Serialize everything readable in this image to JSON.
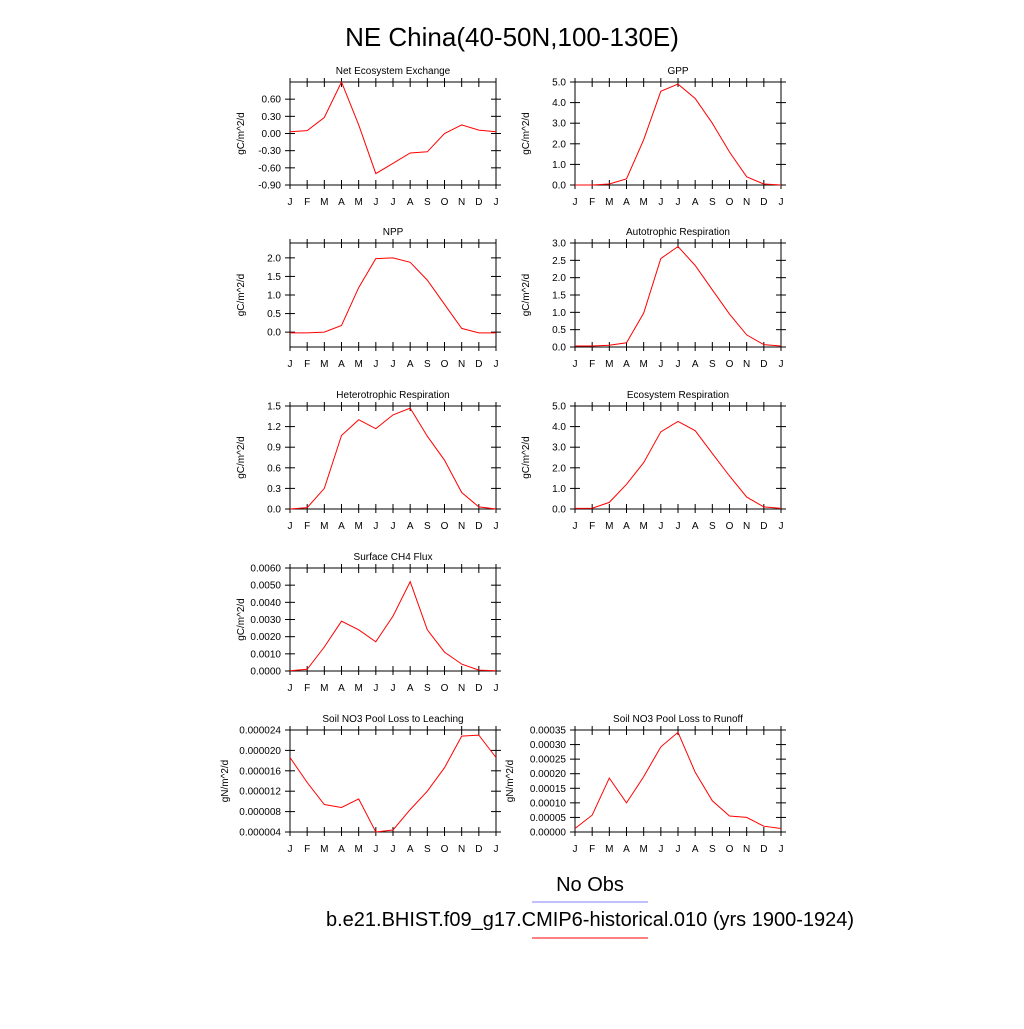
{
  "page": {
    "title": "NE China(40-50N,100-130E)",
    "legend": [
      {
        "label": "No Obs",
        "color": "#8080ff"
      },
      {
        "label": "b.e21.BHIST.f09_g17.CMIP6-historical.010 (yrs 1900-1924)",
        "color": "#ff0000"
      }
    ]
  },
  "chart_data": [
    {
      "type": "line",
      "title": "Net Ecosystem Exchange",
      "ylabel": "gC/m^2/d",
      "categories": [
        "J",
        "F",
        "M",
        "A",
        "M",
        "J",
        "J",
        "A",
        "S",
        "O",
        "N",
        "D",
        "J"
      ],
      "ylim": [
        -0.9,
        0.9
      ],
      "yticks": [
        "-0.90",
        "-0.60",
        "-0.30",
        "0.00",
        "0.30",
        "0.60"
      ],
      "ytick_values": [
        -0.9,
        -0.6,
        -0.3,
        0.0,
        0.3,
        0.6
      ],
      "series": [
        {
          "color": "#ff0000",
          "values": [
            0.03,
            0.05,
            0.28,
            0.9,
            0.15,
            -0.7,
            -0.52,
            -0.34,
            -0.32,
            0.0,
            0.15,
            0.06,
            0.03
          ]
        }
      ]
    },
    {
      "type": "line",
      "title": "GPP",
      "ylabel": "gC/m^2/d",
      "categories": [
        "J",
        "F",
        "M",
        "A",
        "M",
        "J",
        "J",
        "A",
        "S",
        "O",
        "N",
        "D",
        "J"
      ],
      "ylim": [
        0,
        5
      ],
      "yticks": [
        "0.0",
        "1.0",
        "2.0",
        "3.0",
        "4.0",
        "5.0"
      ],
      "ytick_values": [
        0,
        1,
        2,
        3,
        4,
        5
      ],
      "series": [
        {
          "color": "#ff0000",
          "values": [
            0.0,
            0.0,
            0.05,
            0.3,
            2.2,
            4.55,
            4.9,
            4.2,
            3.0,
            1.6,
            0.4,
            0.05,
            0.0
          ]
        }
      ]
    },
    {
      "type": "line",
      "title": "NPP",
      "ylabel": "gC/m^2/d",
      "categories": [
        "J",
        "F",
        "M",
        "A",
        "M",
        "J",
        "J",
        "A",
        "S",
        "O",
        "N",
        "D",
        "J"
      ],
      "ylim": [
        -0.4,
        2.4
      ],
      "yticks": [
        "0.0",
        "0.5",
        "1.0",
        "1.5",
        "2.0"
      ],
      "ytick_values": [
        0,
        0.5,
        1.0,
        1.5,
        2.0
      ],
      "series": [
        {
          "color": "#ff0000",
          "values": [
            -0.02,
            -0.02,
            0.0,
            0.18,
            1.2,
            1.98,
            2.0,
            1.88,
            1.4,
            0.75,
            0.1,
            -0.02,
            -0.02
          ]
        }
      ]
    },
    {
      "type": "line",
      "title": "Autotrophic Respiration",
      "ylabel": "gC/m^2/d",
      "categories": [
        "J",
        "F",
        "M",
        "A",
        "M",
        "J",
        "J",
        "A",
        "S",
        "O",
        "N",
        "D",
        "J"
      ],
      "ylim": [
        0,
        3
      ],
      "yticks": [
        "0.0",
        "0.5",
        "1.0",
        "1.5",
        "2.0",
        "2.5",
        "3.0"
      ],
      "ytick_values": [
        0,
        0.5,
        1,
        1.5,
        2,
        2.5,
        3
      ],
      "series": [
        {
          "color": "#ff0000",
          "values": [
            0.03,
            0.03,
            0.05,
            0.12,
            0.98,
            2.55,
            2.9,
            2.35,
            1.65,
            0.95,
            0.35,
            0.07,
            0.03
          ]
        }
      ]
    },
    {
      "type": "line",
      "title": "Heterotrophic Respiration",
      "ylabel": "gC/m^2/d",
      "categories": [
        "J",
        "F",
        "M",
        "A",
        "M",
        "J",
        "J",
        "A",
        "S",
        "O",
        "N",
        "D",
        "J"
      ],
      "ylim": [
        0,
        1.5
      ],
      "yticks": [
        "0.0",
        "0.3",
        "0.6",
        "0.9",
        "1.2",
        "1.5"
      ],
      "ytick_values": [
        0,
        0.3,
        0.6,
        0.9,
        1.2,
        1.5
      ],
      "series": [
        {
          "color": "#ff0000",
          "values": [
            0.0,
            0.02,
            0.3,
            1.07,
            1.3,
            1.17,
            1.37,
            1.47,
            1.06,
            0.71,
            0.24,
            0.03,
            0.0
          ]
        }
      ]
    },
    {
      "type": "line",
      "title": "Ecosystem Respiration",
      "ylabel": "gC/m^2/d",
      "categories": [
        "J",
        "F",
        "M",
        "A",
        "M",
        "J",
        "J",
        "A",
        "S",
        "O",
        "N",
        "D",
        "J"
      ],
      "ylim": [
        0,
        5
      ],
      "yticks": [
        "0.0",
        "1.0",
        "2.0",
        "3.0",
        "4.0",
        "5.0"
      ],
      "ytick_values": [
        0,
        1,
        2,
        3,
        4,
        5
      ],
      "series": [
        {
          "color": "#ff0000",
          "values": [
            0.03,
            0.04,
            0.32,
            1.2,
            2.25,
            3.75,
            4.25,
            3.8,
            2.7,
            1.6,
            0.58,
            0.1,
            0.03
          ]
        }
      ]
    },
    {
      "type": "line",
      "title": "Surface CH4 Flux",
      "ylabel": "gC/m^2/d",
      "categories": [
        "J",
        "F",
        "M",
        "A",
        "M",
        "J",
        "J",
        "A",
        "S",
        "O",
        "N",
        "D",
        "J"
      ],
      "ylim": [
        0,
        0.006
      ],
      "yticks": [
        "0.0000",
        "0.0010",
        "0.0020",
        "0.0030",
        "0.0040",
        "0.0050",
        "0.0060"
      ],
      "ytick_values": [
        0,
        0.001,
        0.002,
        0.003,
        0.004,
        0.005,
        0.006
      ],
      "series": [
        {
          "color": "#ff0000",
          "values": [
            2e-05,
            0.0001,
            0.0014,
            0.0029,
            0.0024,
            0.0017,
            0.0032,
            0.0052,
            0.0024,
            0.0011,
            0.0004,
            5e-05,
            2e-05
          ]
        }
      ]
    },
    {
      "type": "line",
      "title": "Soil NO3 Pool Loss to Leaching",
      "ylabel": "gN/m^2/d",
      "categories": [
        "J",
        "F",
        "M",
        "A",
        "M",
        "J",
        "J",
        "A",
        "S",
        "O",
        "N",
        "D",
        "J"
      ],
      "ylim": [
        4e-06,
        2.4e-05
      ],
      "yticks": [
        "0.000004",
        "0.000008",
        "0.000012",
        "0.000016",
        "0.000020",
        "0.000024"
      ],
      "ytick_values": [
        4e-06,
        8e-06,
        1.2e-05,
        1.6e-05,
        2e-05,
        2.4e-05
      ],
      "series": [
        {
          "color": "#ff0000",
          "values": [
            1.86e-05,
            1.37e-05,
            9.4e-06,
            8.8e-06,
            1.05e-05,
            4e-06,
            4.4e-06,
            8.4e-06,
            1.2e-05,
            1.66e-05,
            2.28e-05,
            2.3e-05,
            1.86e-05
          ]
        }
      ]
    },
    {
      "type": "line",
      "title": "Soil NO3 Pool Loss to Runoff",
      "ylabel": "gN/m^2/d",
      "categories": [
        "J",
        "F",
        "M",
        "A",
        "M",
        "J",
        "J",
        "A",
        "S",
        "O",
        "N",
        "D",
        "J"
      ],
      "ylim": [
        0,
        0.00035
      ],
      "yticks": [
        "0.00000",
        "0.00005",
        "0.00010",
        "0.00015",
        "0.00020",
        "0.00025",
        "0.00030",
        "0.00035"
      ],
      "ytick_values": [
        0,
        5e-05,
        0.0001,
        0.00015,
        0.0002,
        0.00025,
        0.0003,
        0.00035
      ],
      "series": [
        {
          "color": "#ff0000",
          "values": [
            1.2e-05,
            5.8e-05,
            0.000185,
            0.0001,
            0.00019,
            0.000292,
            0.000342,
            0.000205,
            0.000107,
            5.5e-05,
            5e-05,
            2e-05,
            1.2e-05
          ]
        }
      ]
    }
  ]
}
